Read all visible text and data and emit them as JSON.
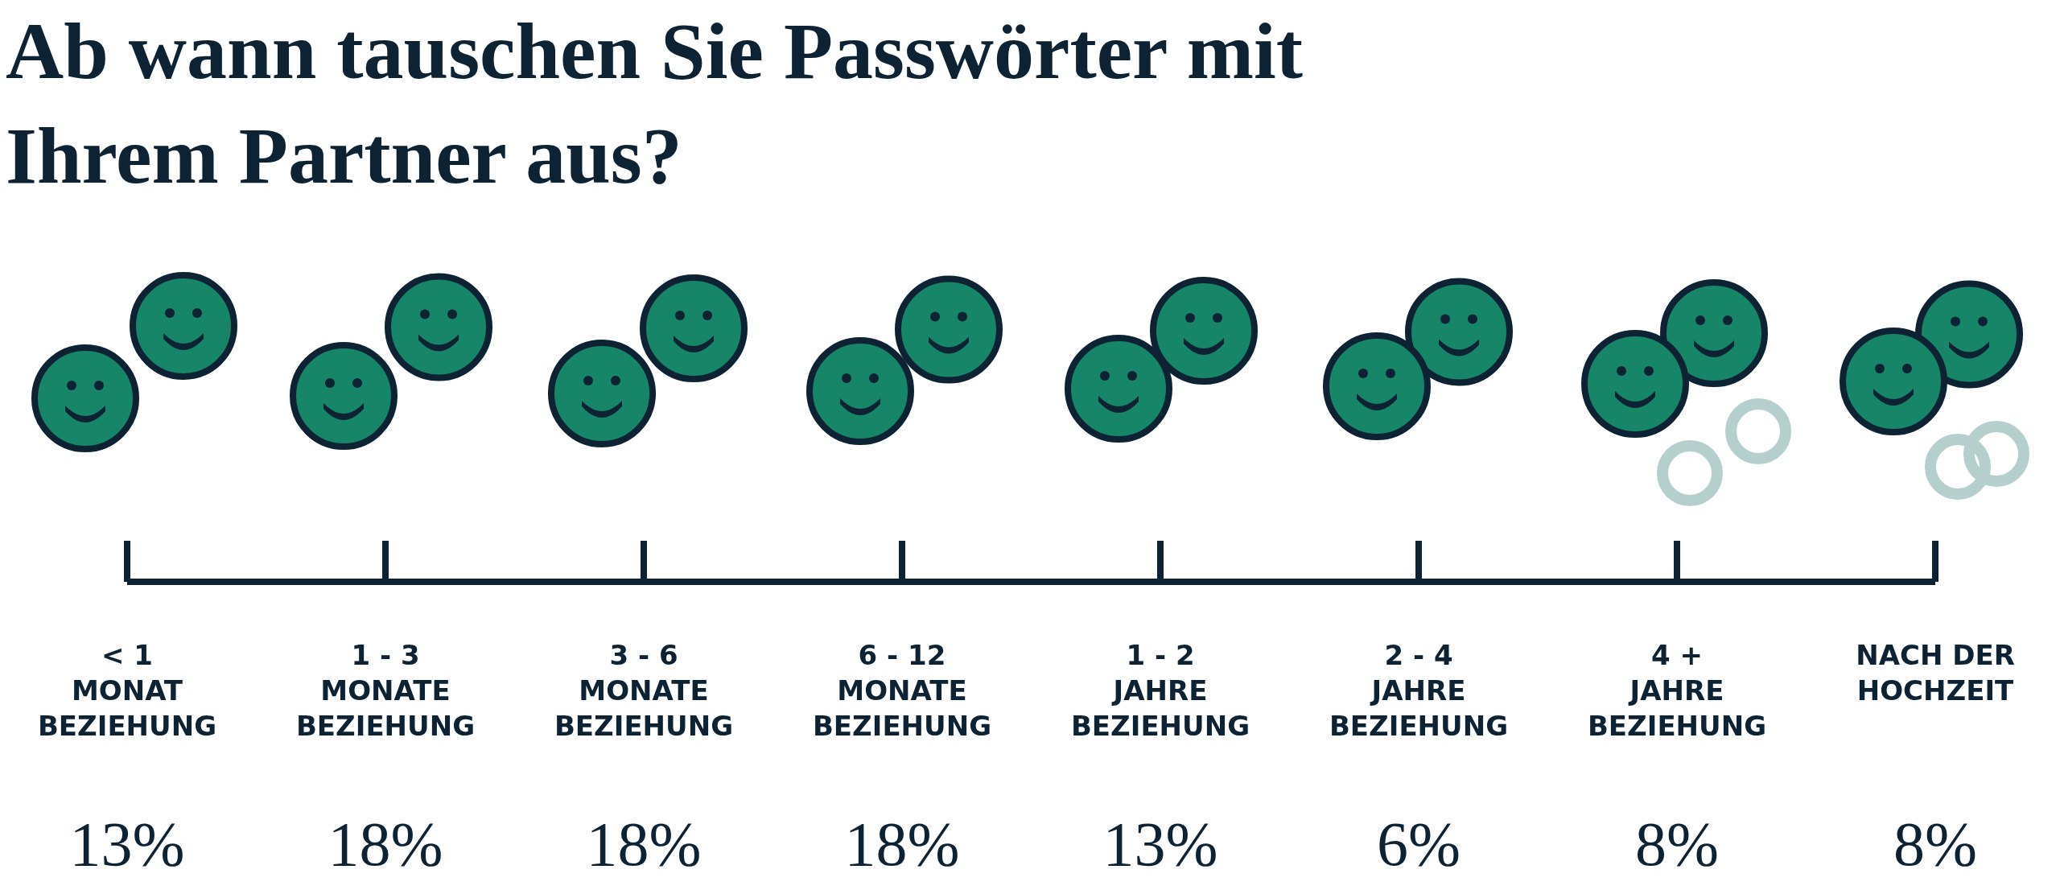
{
  "chart_data": {
    "type": "other",
    "title": "Ab wann tauschen Sie Passwörter mit\nIhrem Partner aus?",
    "categories": [
      "< 1\nMONAT\nBEZIEHUNG",
      "1 - 3\nMONATE\nBEZIEHUNG",
      "3 - 6\nMONATE\nBEZIEHUNG",
      "6 - 12\nMONATE\nBEZIEHUNG",
      "1 - 2\nJAHRE\nBEZIEHUNG",
      "2 - 4\nJAHRE\nBEZIEHUNG",
      "4 +\nJAHRE\nBEZIEHUNG",
      "NACH DER\nHOCHZEIT"
    ],
    "values": [
      13,
      18,
      18,
      18,
      13,
      6,
      8,
      8
    ],
    "value_labels": [
      "13%",
      "18%",
      "18%",
      "18%",
      "13%",
      "6%",
      "8%",
      "8%"
    ],
    "data_labels": true,
    "color": "#178567"
  }
}
